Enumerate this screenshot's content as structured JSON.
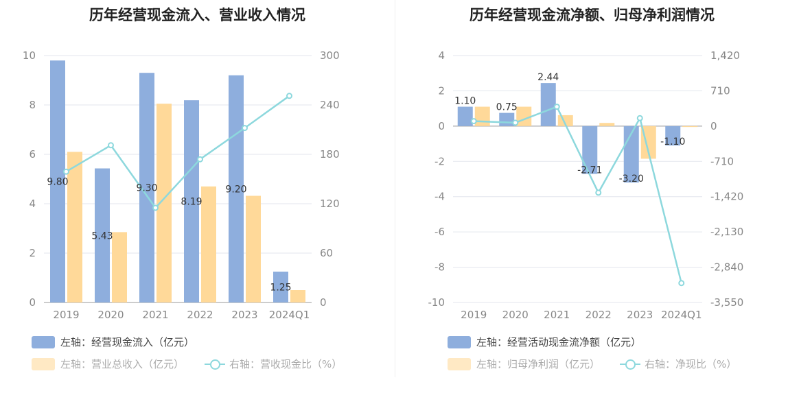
{
  "chart_data": [
    {
      "type": "bar",
      "title": "历年经营现金流入、营业收入情况",
      "categories": [
        "2019",
        "2020",
        "2021",
        "2022",
        "2023",
        "2024Q1"
      ],
      "left_axis": {
        "ylim": [
          0,
          10
        ],
        "ticks": [
          "0",
          "2",
          "4",
          "6",
          "8",
          "10"
        ]
      },
      "right_axis": {
        "ylim": [
          0,
          300
        ],
        "ticks": [
          "0",
          "60",
          "120",
          "180",
          "240",
          "300"
        ]
      },
      "series": [
        {
          "name": "左轴：经营现金流入（亿元）",
          "type": "bar",
          "axis": "left",
          "color": "#8eaedd",
          "values": [
            9.8,
            5.43,
            9.3,
            8.19,
            9.2,
            1.25
          ],
          "labels": [
            "9.80",
            "5.43",
            "9.30",
            "8.19",
            "9.20",
            "1.25"
          ]
        },
        {
          "name": "左轴：营业总收入（亿元）",
          "type": "bar",
          "axis": "left",
          "color": "#ffd999",
          "values": [
            6.1,
            2.85,
            8.05,
            4.7,
            4.32,
            0.5
          ]
        },
        {
          "name": "右轴：营收现金比（%）",
          "type": "line",
          "axis": "right",
          "color": "#8dd8dd",
          "values": [
            159,
            191,
            115,
            174,
            212,
            251
          ]
        }
      ],
      "grid": true
    },
    {
      "type": "bar",
      "title": "历年经营现金流净额、归母净利润情况",
      "categories": [
        "2019",
        "2020",
        "2021",
        "2022",
        "2023",
        "2024Q1"
      ],
      "left_axis": {
        "ylim": [
          -10,
          4
        ],
        "ticks": [
          "-10",
          "-8",
          "-6",
          "-4",
          "-2",
          "0",
          "2",
          "4"
        ]
      },
      "right_axis": {
        "ylim": [
          -3550,
          1420
        ],
        "ticks": [
          "-3,550",
          "-2,840",
          "-2,130",
          "-1,420",
          "-710",
          "0",
          "710",
          "1,420"
        ]
      },
      "series": [
        {
          "name": "左轴：经营活动现金流净额（亿元）",
          "type": "bar",
          "axis": "left",
          "color": "#8eaedd",
          "values": [
            1.1,
            0.75,
            2.44,
            -2.71,
            -3.2,
            -1.1
          ],
          "labels": [
            "1.10",
            "0.75",
            "2.44",
            "-2.71",
            "-3.20",
            "-1.10"
          ]
        },
        {
          "name": "左轴：归母净利润（亿元）",
          "type": "bar",
          "axis": "left",
          "color": "#ffd999",
          "values": [
            1.1,
            1.1,
            0.62,
            0.18,
            -1.85,
            -0.05
          ]
        },
        {
          "name": "右轴：净现比（%）",
          "type": "line",
          "axis": "right",
          "color": "#8dd8dd",
          "values": [
            100,
            68,
            390,
            -1340,
            160,
            -3160
          ]
        }
      ],
      "grid": true
    }
  ]
}
